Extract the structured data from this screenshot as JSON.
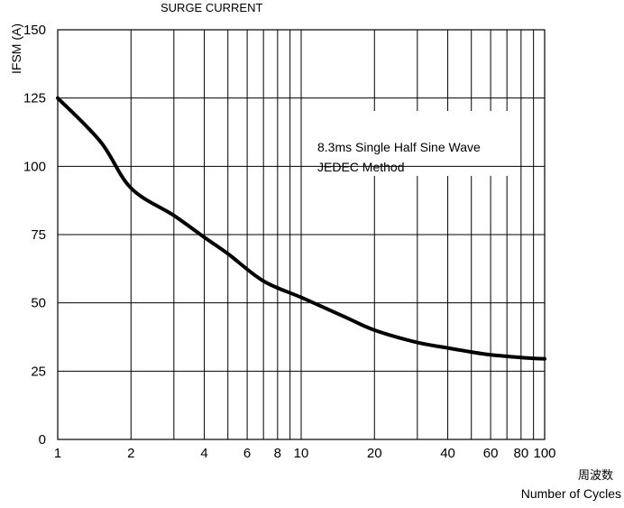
{
  "chart_data": {
    "type": "line",
    "title": "SURGE CURRENT",
    "ylabel": "IFSM  (A)",
    "xlabel_cn": "周波数",
    "xlabel": "Number of Cycles",
    "xscale": "log",
    "xlim": [
      1,
      100
    ],
    "ylim": [
      0,
      150
    ],
    "grid": true,
    "x_tick_values": [
      1,
      2,
      4,
      6,
      8,
      10,
      20,
      40,
      60,
      80,
      100
    ],
    "x_tick_labels": [
      "1",
      "2",
      "4",
      "6",
      "8",
      "10",
      "20",
      "40",
      "60",
      "80",
      "100"
    ],
    "x_minor_values": [
      3,
      5,
      7,
      9,
      30,
      50,
      70,
      90
    ],
    "y_tick_values": [
      0,
      25,
      50,
      75,
      100,
      125,
      150
    ],
    "y_tick_labels": [
      "0",
      "25",
      "50",
      "75",
      "100",
      "125",
      "150"
    ],
    "annotations": [
      "8.3ms Single Half Sine Wave",
      "JEDEC Method"
    ],
    "series": [
      {
        "x": [
          1,
          1.5,
          2,
          3,
          4,
          5,
          7,
          10,
          15,
          20,
          30,
          40,
          50,
          60,
          80,
          100
        ],
        "y": [
          125,
          109,
          92,
          82,
          74,
          68,
          58,
          52,
          45,
          40,
          35.5,
          33.5,
          32,
          31,
          30,
          29.5
        ]
      }
    ]
  }
}
